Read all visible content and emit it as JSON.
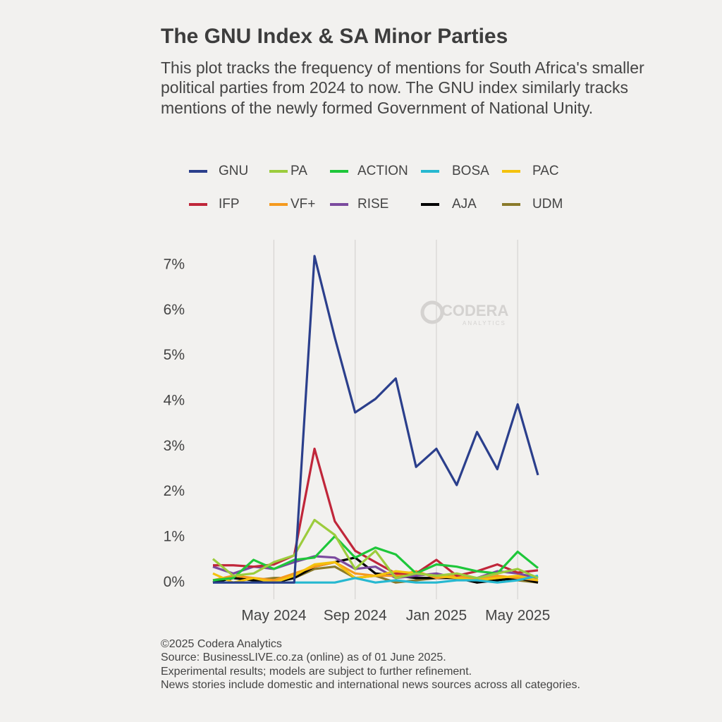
{
  "chart_data": {
    "type": "line",
    "title": "The GNU Index & SA Minor Parties",
    "subtitle": [
      "This plot tracks the frequency of mentions for South Africa's smaller",
      "political parties from 2024 to now. The GNU index similarly tracks",
      "mentions of the newly formed Government of National Unity."
    ],
    "watermark": [
      "CODERA",
      "ANALYTICS"
    ],
    "footer": [
      "©2025 Codera Analytics",
      "Source: BusinessLIVE.co.za (online) as of 01 June 2025.",
      "Experimental results; models are subject to further refinement.",
      "News stories include domestic and international news sources across all categories."
    ],
    "x": [
      "2024-02",
      "2024-03",
      "2024-04",
      "2024-05",
      "2024-06",
      "2024-07",
      "2024-08",
      "2024-09",
      "2024-10",
      "2024-11",
      "2024-12",
      "2025-01",
      "2025-02",
      "2025-03",
      "2025-04",
      "2025-05",
      "2025-06"
    ],
    "xlim": [
      "2024-02",
      "2025-06"
    ],
    "xticks": [
      {
        "value": "2024-05",
        "label": "May 2024"
      },
      {
        "value": "2024-09",
        "label": "Sep 2024"
      },
      {
        "value": "2025-01",
        "label": "Jan 2025"
      },
      {
        "value": "2025-05",
        "label": "May 2025"
      }
    ],
    "ylim": [
      -0.37,
      7.56
    ],
    "yticks": [
      {
        "value": 0,
        "label": "0%"
      },
      {
        "value": 1,
        "label": "1%"
      },
      {
        "value": 2,
        "label": "2%"
      },
      {
        "value": 3,
        "label": "3%"
      },
      {
        "value": 4,
        "label": "4%"
      },
      {
        "value": 5,
        "label": "5%"
      },
      {
        "value": 6,
        "label": "6%"
      },
      {
        "value": 7,
        "label": "7%"
      }
    ],
    "grid": "x",
    "legend": "top",
    "series": [
      {
        "name": "GNU",
        "color": "#2b3f8c",
        "values": [
          0,
          0,
          0,
          0,
          0,
          7.2,
          5.4,
          3.75,
          4.05,
          4.5,
          2.55,
          2.95,
          2.15,
          3.32,
          2.5,
          3.93,
          2.37
        ]
      },
      {
        "name": "PA",
        "color": "#9ccc3c",
        "values": [
          0.52,
          0.15,
          0.2,
          0.45,
          0.6,
          1.38,
          1.05,
          0.3,
          0.7,
          0.1,
          0.2,
          0.15,
          0.2,
          0.1,
          0.2,
          0.3,
          0.1
        ]
      },
      {
        "name": "ACTION",
        "color": "#1ec73a",
        "values": [
          0.05,
          0.1,
          0.5,
          0.3,
          0.5,
          0.55,
          1.02,
          0.55,
          0.77,
          0.62,
          0.2,
          0.4,
          0.35,
          0.25,
          0.2,
          0.68,
          0.32
        ]
      },
      {
        "name": "BOSA",
        "color": "#26b8d0",
        "values": [
          0,
          0,
          0,
          0,
          0,
          0,
          0,
          0.1,
          0,
          0.05,
          0,
          0,
          0.05,
          0.05,
          0,
          0.05,
          0.15
        ]
      },
      {
        "name": "PAC",
        "color": "#f4c20d",
        "values": [
          0.2,
          0,
          0.1,
          0,
          0.15,
          0.4,
          0.45,
          0.1,
          0.15,
          0.25,
          0.2,
          0.15,
          0.1,
          0.05,
          0.1,
          0.15,
          0.05
        ]
      },
      {
        "name": "IFP",
        "color": "#c0263a",
        "values": [
          0.38,
          0.38,
          0.35,
          0.4,
          0.6,
          2.95,
          1.35,
          0.7,
          0.45,
          0.2,
          0.2,
          0.5,
          0.15,
          0.25,
          0.4,
          0.22,
          0.27
        ]
      },
      {
        "name": "VF+",
        "color": "#f59a1e",
        "values": [
          0.05,
          0.15,
          0.1,
          0.05,
          0.2,
          0.35,
          0.45,
          0.2,
          0.15,
          0.15,
          0.25,
          0.1,
          0.15,
          0.05,
          0.15,
          0.1,
          0.05
        ]
      },
      {
        "name": "RISE",
        "color": "#7b4a9e",
        "values": [
          0.35,
          0.2,
          0.35,
          0.3,
          0.45,
          0.58,
          0.55,
          0.3,
          0.35,
          0.1,
          0.15,
          0.2,
          0.1,
          0.1,
          0.25,
          0.2,
          0.1
        ]
      },
      {
        "name": "AJA",
        "color": "#000000",
        "values": [
          0,
          0.1,
          0.05,
          0,
          0.1,
          0.35,
          0.45,
          0.55,
          0.2,
          0.15,
          0.1,
          0.1,
          0.1,
          0,
          0.05,
          0.1,
          0
        ]
      },
      {
        "name": "UDM",
        "color": "#8a7a2a",
        "values": [
          0,
          0.1,
          0.05,
          0.1,
          0.1,
          0.3,
          0.35,
          0.1,
          0.15,
          0,
          0.05,
          0.1,
          0.15,
          0,
          0.1,
          0.05,
          0
        ]
      }
    ]
  }
}
